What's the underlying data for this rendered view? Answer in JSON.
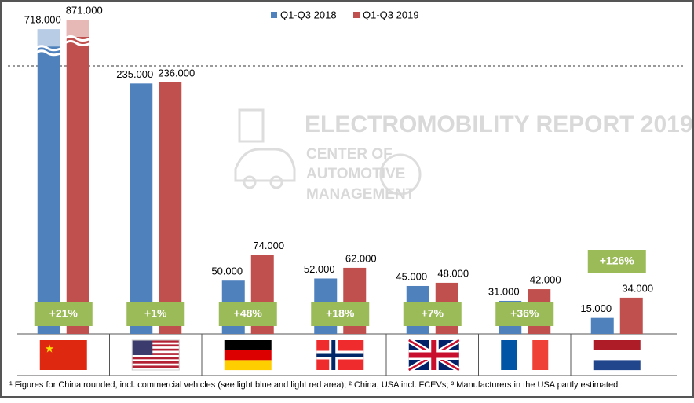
{
  "chart_data": {
    "type": "bar",
    "categories": [
      null,
      null,
      null,
      null,
      null,
      null,
      null
    ],
    "series": [
      {
        "name": "Q1-Q3 2018",
        "color": "#4f81bd",
        "values": [
          718000,
          235000,
          50000,
          52000,
          45000,
          31000,
          15000
        ],
        "value_labels": [
          "718.000",
          "235.000",
          "50.000",
          "52.000",
          "45.000",
          "31.000",
          "15.000"
        ]
      },
      {
        "name": "Q1-Q3 2019",
        "color": "#c0504d",
        "values": [
          871000,
          236000,
          74000,
          62000,
          48000,
          42000,
          34000
        ],
        "value_labels": [
          "871.000",
          "236.000",
          "74.000",
          "62.000",
          "48.000",
          "42.000",
          "34.000"
        ]
      }
    ],
    "growth_labels": [
      "+21%",
      "+1%",
      "+48%",
      "+18%",
      "+7%",
      "+36%",
      "+126%"
    ],
    "watermark": [
      "ELECTROMOBILITY REPORT 2019",
      "CENTER OF",
      "AUTOMOTIVE",
      "MANAGEMENT"
    ],
    "footnote": "¹ Figures for China rounded, incl. commercial vehicles (see light blue and light red area); ² China, USA incl. FCEVs; ³ Manufacturers in the USA partly estimated"
  }
}
